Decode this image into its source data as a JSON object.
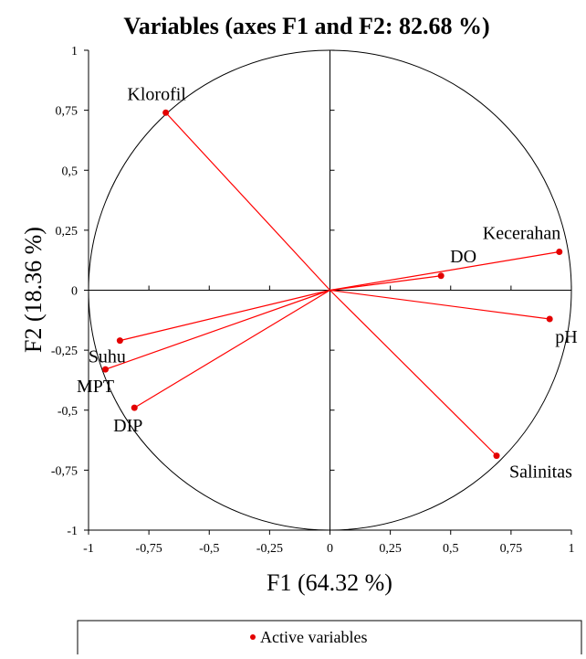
{
  "chart_data": {
    "type": "scatter",
    "title": "Variables (axes F1 and F2: 82.68 %)",
    "xlabel": "F1 (64.32 %)",
    "ylabel": "F2 (18.36 %)",
    "xlim": [
      -1,
      1
    ],
    "ylim": [
      -1,
      1
    ],
    "x_ticks": [
      -1,
      -0.75,
      -0.5,
      -0.25,
      0,
      0.25,
      0.5,
      0.75,
      1
    ],
    "y_ticks": [
      -1,
      -0.75,
      -0.5,
      -0.25,
      0,
      0.25,
      0.5,
      0.75,
      1
    ],
    "x_tick_labels": [
      "-1",
      "-0,75",
      "-0,5",
      "-0,25",
      "0",
      "0,25",
      "0,5",
      "0,75",
      "1"
    ],
    "y_tick_labels": [
      "-1",
      "-0,75",
      "-0,5",
      "-0,25",
      "0",
      "0,25",
      "0,5",
      "0,75",
      "1"
    ],
    "correlation_circle": true,
    "grid": false,
    "legend": {
      "position": "bottom",
      "entries": [
        "Active variables"
      ]
    },
    "points": [
      {
        "label": "Klorofil",
        "x": -0.68,
        "y": 0.74
      },
      {
        "label": "Kecerahan",
        "x": 0.95,
        "y": 0.16
      },
      {
        "label": "DO",
        "x": 0.46,
        "y": 0.06
      },
      {
        "label": "pH",
        "x": 0.91,
        "y": -0.12
      },
      {
        "label": "Salinitas",
        "x": 0.69,
        "y": -0.69
      },
      {
        "label": "Suhu",
        "x": -0.87,
        "y": -0.21
      },
      {
        "label": "MPT",
        "x": -0.93,
        "y": -0.33
      },
      {
        "label": "DIP",
        "x": -0.81,
        "y": -0.49
      }
    ]
  },
  "colors": {
    "series": "#ff0000",
    "marker": "#e30000",
    "axis": "#000000"
  }
}
